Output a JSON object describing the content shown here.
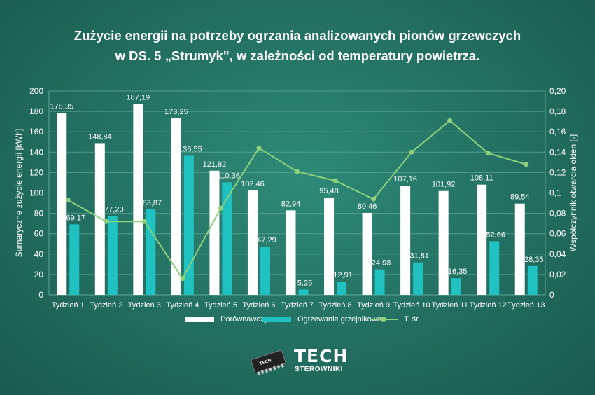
{
  "title_line1": "Zużycie energii na potrzeby ogrzania analizowanych pionów grzewczych",
  "title_line2": "w DS. 5 „Strumyk\", w zależności od temperatury powietrza.",
  "logo": {
    "brand": "TECH",
    "sub": "STEROWNIKI"
  },
  "colors": {
    "bar1": "#ffffff",
    "bar2": "#1fc2c0",
    "line": "#8fd07a",
    "grid": "#5fa898"
  },
  "chart_data": {
    "type": "bar",
    "categories": [
      "Tydzień 1",
      "Tydzień 2",
      "Tydzień 3",
      "Tydzień 4",
      "Tydzień 5",
      "Tydzień 6",
      "Tydzień 7",
      "Tydzień 8",
      "Tydzień 9",
      "Tydzień 10",
      "Tydzień 11",
      "Tydzień 12",
      "Tydzień 13"
    ],
    "ylabel": "Sumaryczne zużycie energii [kWh]",
    "y2label": "Współczynnik otwarcia okien [-]",
    "ylim": [
      0,
      200
    ],
    "y2lim": [
      0,
      0.2
    ],
    "yticks": [
      "0",
      "20",
      "40",
      "60",
      "80",
      "100",
      "120",
      "140",
      "160",
      "180",
      "200"
    ],
    "y2ticks": [
      "0",
      "0,02",
      "0,04",
      "0,06",
      "0,08",
      "0,1",
      "0,12",
      "0,14",
      "0,16",
      "0,18",
      "0,20"
    ],
    "grid": true,
    "legend_position": "bottom",
    "series": [
      {
        "name": "Porównawczy",
        "kind": "bar",
        "values": [
          178.35,
          148.84,
          187.19,
          173.25,
          121.82,
          102.46,
          82.94,
          95.48,
          80.46,
          107.16,
          101.92,
          108.11,
          89.54
        ],
        "labels": [
          "178,35",
          "148,84",
          "187,19",
          "173,25",
          "121,82",
          "102,46",
          "82,94",
          "95,48",
          "80,46",
          "107,16",
          "101,92",
          "108,11",
          "89,54"
        ]
      },
      {
        "name": "Ogrzewanie grzejnikowe",
        "kind": "bar",
        "values": [
          69.17,
          77.2,
          83.87,
          136.55,
          110.36,
          47.29,
          5.25,
          12.91,
          24.98,
          31.81,
          16.35,
          52.66,
          28.35
        ],
        "labels": [
          "69,17",
          "77,20",
          "83,87",
          "136,55",
          "110,36",
          "47,29",
          "5,25",
          "12,91",
          "24,98",
          "31,81",
          "16,35",
          "52,66",
          "28,35"
        ]
      },
      {
        "name": "T. śr.",
        "kind": "line",
        "axis": "right",
        "values": [
          0.093,
          0.072,
          0.072,
          0.016,
          0.085,
          0.144,
          0.121,
          0.112,
          0.094,
          0.14,
          0.171,
          0.139,
          0.128
        ]
      }
    ]
  }
}
